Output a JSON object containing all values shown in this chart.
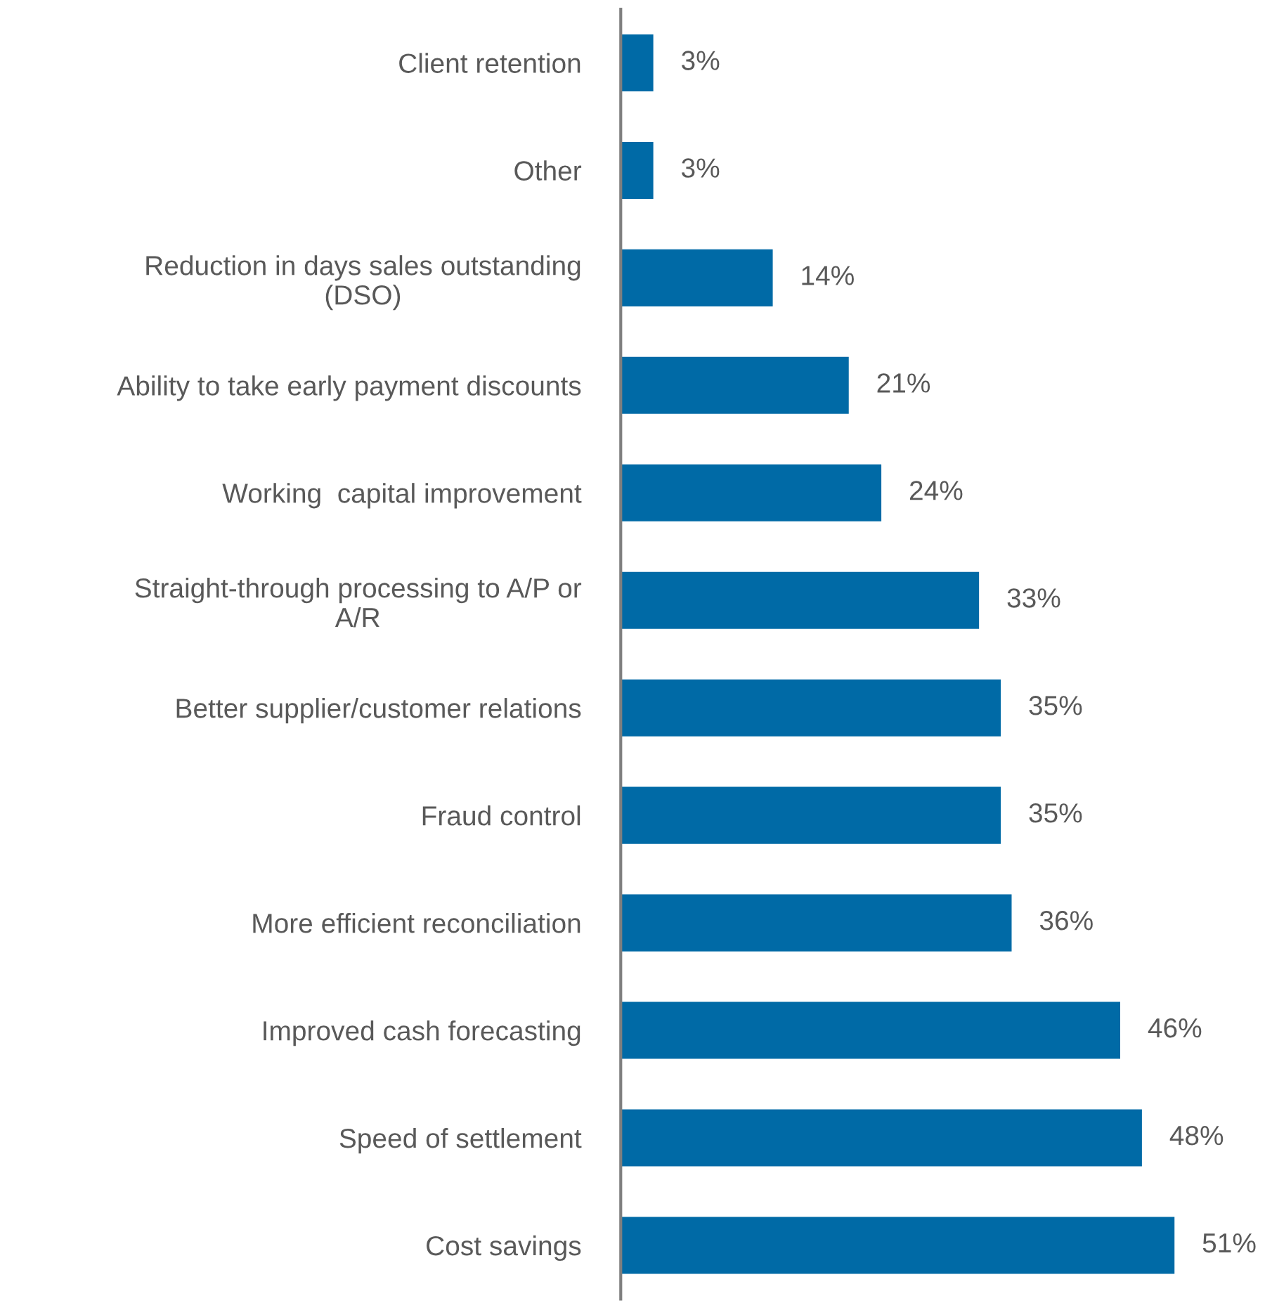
{
  "chart_data": {
    "type": "bar",
    "orientation": "horizontal",
    "categories": [
      "Client retention",
      "Other",
      "Reduction in days sales outstanding\n(DSO)",
      "Ability to take early payment discounts",
      "Working  capital improvement",
      "Straight-through processing to A/P or\nA/R",
      "Better supplier/customer relations",
      "Fraud control",
      "More efficient reconciliation",
      "Improved cash forecasting",
      "Speed of settlement",
      "Cost savings"
    ],
    "values": [
      3,
      3,
      14,
      21,
      24,
      33,
      35,
      35,
      36,
      46,
      48,
      51
    ],
    "value_labels": [
      "3%",
      "3%",
      "14%",
      "21%",
      "24%",
      "33%",
      "35%",
      "35%",
      "36%",
      "46%",
      "48%",
      "51%"
    ],
    "color": "#006aa6",
    "grid": false,
    "legend": false,
    "tick_labels": "y"
  }
}
